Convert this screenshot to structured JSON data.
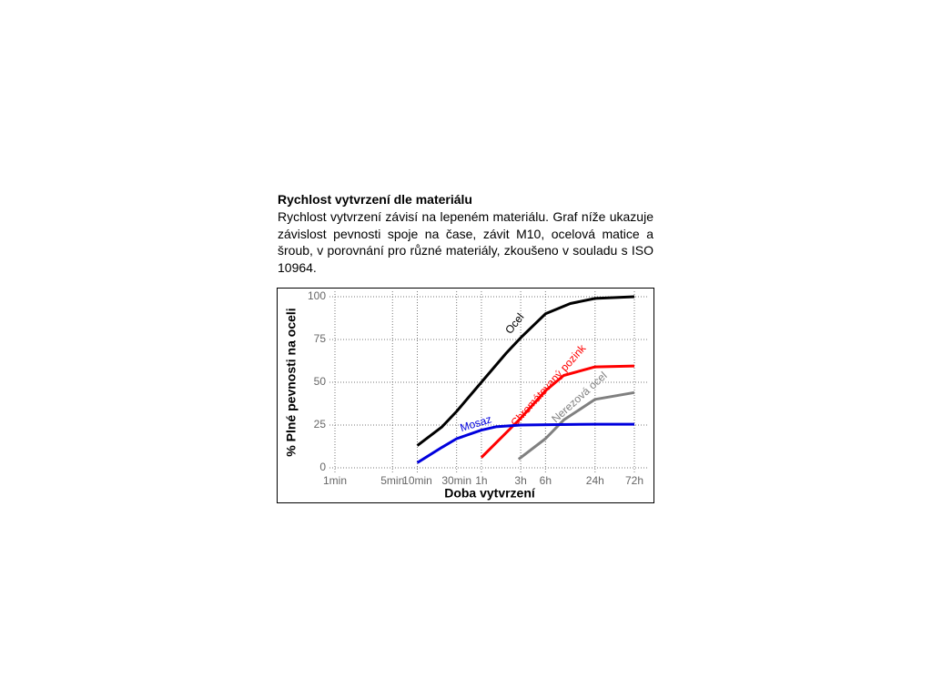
{
  "document": {
    "heading": "Rychlost vytvrzení dle materiálu",
    "paragraph": "Rychlost vytvrzení závisí na lepeném materiálu. Graf níže ukazuje závislost pevnosti spoje na čase, závit M10, ocelová matice a šroub, v porovnání pro různé materiály, zkoušeno v souladu s ISO 10964."
  },
  "chart_data": {
    "type": "line",
    "xlabel": "Doba vytvrzení",
    "ylabel": "% Plné pevnosti na oceli",
    "log_x": true,
    "grid": true,
    "xlim": [
      1,
      4320
    ],
    "xticks": [
      {
        "value": 1,
        "label": "1min"
      },
      {
        "value": 5,
        "label": "5min"
      },
      {
        "value": 10,
        "label": "10min"
      },
      {
        "value": 30,
        "label": "30min"
      },
      {
        "value": 60,
        "label": "1h"
      },
      {
        "value": 180,
        "label": "3h"
      },
      {
        "value": 360,
        "label": "6h"
      },
      {
        "value": 1440,
        "label": "24h"
      },
      {
        "value": 4320,
        "label": "72h"
      }
    ],
    "ylim": [
      0,
      100
    ],
    "yticks": [
      0,
      25,
      50,
      75,
      100
    ],
    "series": [
      {
        "name": "Ocel",
        "color": "#000000",
        "x": [
          10,
          20,
          30,
          60,
          120,
          180,
          360,
          720,
          1440,
          4320
        ],
        "values": [
          13,
          24,
          33,
          50,
          67,
          76,
          90,
          96,
          99,
          100
        ]
      },
      {
        "name": "Chromátovaný pozink",
        "color": "#ff0000",
        "x": [
          60,
          180,
          360,
          600,
          1440,
          4320
        ],
        "values": [
          6,
          29,
          45,
          54,
          59,
          59.5
        ]
      },
      {
        "name": "Nerezová ocel",
        "color": "#808080",
        "x": [
          170,
          360,
          600,
          1440,
          4320
        ],
        "values": [
          5,
          17,
          28,
          40,
          44
        ]
      },
      {
        "name": "Mosaz",
        "color": "#0000dd",
        "x": [
          10,
          20,
          30,
          60,
          90,
          180,
          1440,
          4320
        ],
        "values": [
          3,
          12,
          17,
          22,
          24,
          25,
          25.5,
          25.5
        ]
      }
    ]
  }
}
